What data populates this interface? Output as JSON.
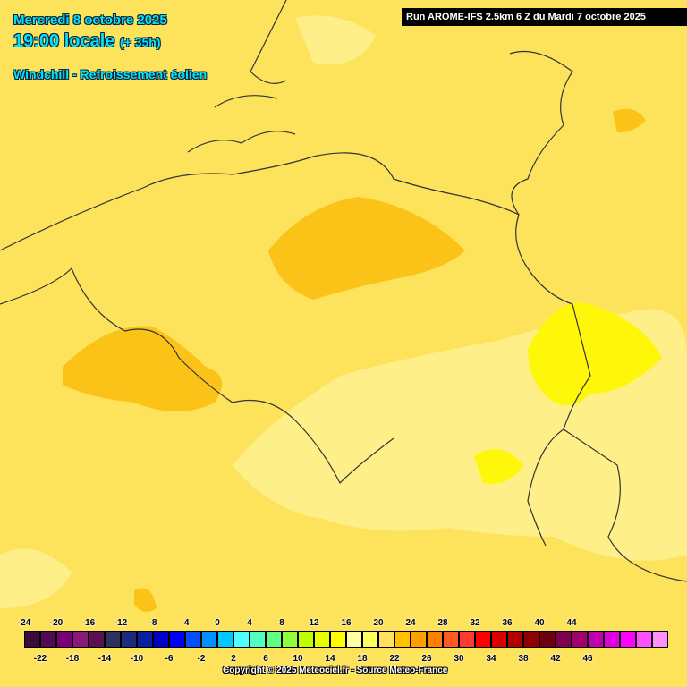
{
  "header": {
    "date": "Mercredi 8 octobre 2025",
    "time": "19:00 locale",
    "lead": "(+ 35h)",
    "parameter": "Windchill - Refroissement éolien",
    "run": "Run AROME-IFS 2.5km 6 Z du Mardi 7 octobre 2025"
  },
  "legend": {
    "top_labels": [
      -24,
      -20,
      -16,
      -12,
      -8,
      -4,
      0,
      4,
      8,
      12,
      16,
      20,
      24,
      28,
      32,
      36,
      40,
      44
    ],
    "bottom_labels": [
      -22,
      -18,
      -14,
      -10,
      -6,
      -2,
      2,
      6,
      10,
      14,
      18,
      22,
      26,
      30,
      34,
      38,
      42,
      46
    ],
    "colors": [
      "#3a0a3a",
      "#520a52",
      "#780078",
      "#8a1a7a",
      "#5a1050",
      "#303060",
      "#1c2a80",
      "#0a1ea0",
      "#0000c8",
      "#0000ff",
      "#0050ff",
      "#0090ff",
      "#00c8ff",
      "#50ffff",
      "#50ffc0",
      "#60ff80",
      "#90ff40",
      "#c0ff00",
      "#e8ff00",
      "#ffff00",
      "#ffffa0",
      "#ffff60",
      "#ffe060",
      "#ffc000",
      "#ffa000",
      "#ff8000",
      "#ff5a20",
      "#ff3a30",
      "#ff0000",
      "#d80000",
      "#b00000",
      "#900000",
      "#700010",
      "#800050",
      "#a00070",
      "#c000b0",
      "#e000e0",
      "#ff00ff",
      "#ff50ff",
      "#ff90ff"
    ]
  },
  "footer": {
    "copyright": "Copyright © 2025 Meteociel.fr - Source Meteo-France"
  }
}
